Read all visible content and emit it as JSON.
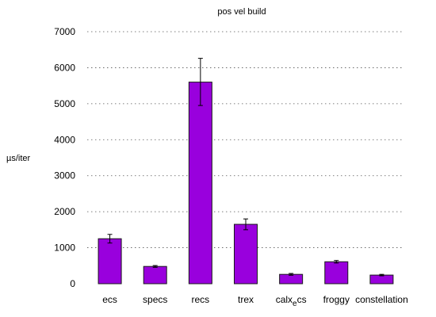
{
  "chart_data": {
    "type": "bar",
    "title": "pos vel build",
    "xlabel": "",
    "ylabel": "µs/iter",
    "ylim": [
      0,
      7000
    ],
    "yticks": [
      0,
      1000,
      2000,
      3000,
      4000,
      5000,
      6000,
      7000
    ],
    "grid": true,
    "legend": "none",
    "bar_color": "#9900dd",
    "categories": [
      "ecs",
      "specs",
      "recs",
      "trex",
      "calx_e_cs",
      "froggy",
      "constellation"
    ],
    "values": [
      1250,
      480,
      5600,
      1650,
      260,
      610,
      240
    ],
    "error_low": [
      1130,
      455,
      4950,
      1500,
      235,
      575,
      220
    ],
    "error_high": [
      1370,
      505,
      6260,
      1800,
      285,
      645,
      260
    ]
  }
}
